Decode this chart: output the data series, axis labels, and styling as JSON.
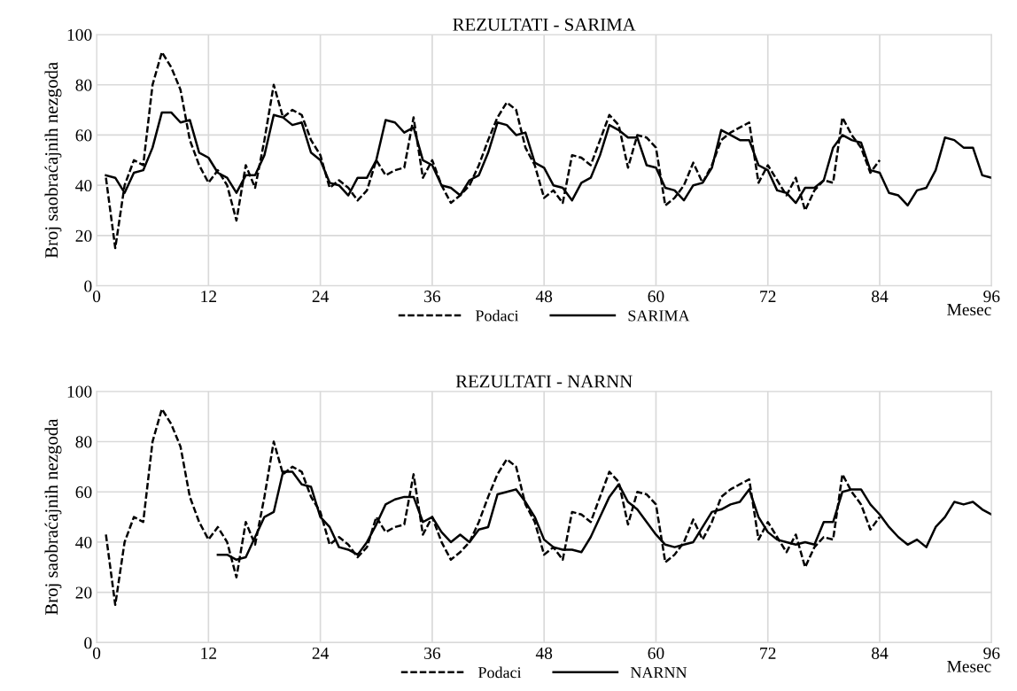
{
  "chart_data": [
    {
      "type": "line",
      "title": "REZULTATI - SARIMA",
      "xlabel": "Mesec",
      "ylabel": "Broj saobraćajnih nezgoda",
      "xlim": [
        0,
        96
      ],
      "xticks": [
        0,
        12,
        24,
        36,
        48,
        60,
        72,
        84,
        96
      ],
      "ylim": [
        0,
        100
      ],
      "yticks": [
        0,
        20,
        40,
        60,
        80,
        100
      ],
      "grid": true,
      "legend": "bottom",
      "series": [
        {
          "name": "Podaci",
          "color": "#000000",
          "line_style": "dashed",
          "x": [
            1,
            2,
            3,
            4,
            5,
            6,
            7,
            8,
            9,
            10,
            11,
            12,
            13,
            14,
            15,
            16,
            17,
            18,
            19,
            20,
            21,
            22,
            23,
            24,
            25,
            26,
            27,
            28,
            29,
            30,
            31,
            32,
            33,
            34,
            35,
            36,
            37,
            38,
            39,
            40,
            41,
            42,
            43,
            44,
            45,
            46,
            47,
            48,
            49,
            50,
            51,
            52,
            53,
            54,
            55,
            56,
            57,
            58,
            59,
            60,
            61,
            62,
            63,
            64,
            65,
            66,
            67,
            68,
            69,
            70,
            71,
            72,
            73,
            74,
            75,
            76,
            77,
            78,
            79,
            80,
            81,
            82,
            83,
            84
          ],
          "values": [
            43,
            15,
            40,
            50,
            48,
            80,
            93,
            87,
            78,
            58,
            48,
            41,
            46,
            40,
            26,
            48,
            39,
            58,
            80,
            67,
            70,
            68,
            58,
            52,
            39,
            42,
            39,
            34,
            38,
            50,
            44,
            46,
            47,
            67,
            43,
            50,
            40,
            33,
            36,
            40,
            48,
            58,
            67,
            73,
            70,
            55,
            48,
            35,
            38,
            33,
            52,
            51,
            48,
            58,
            68,
            64,
            47,
            60,
            59,
            55,
            32,
            35,
            40,
            49,
            41,
            48,
            58,
            61,
            63,
            65,
            41,
            48,
            42,
            36,
            43,
            30,
            38,
            42,
            41,
            67,
            60,
            55,
            45,
            50
          ]
        },
        {
          "name": "SARIMA",
          "color": "#000000",
          "line_style": "solid",
          "x": [
            1,
            2,
            3,
            4,
            5,
            6,
            7,
            8,
            9,
            10,
            11,
            12,
            13,
            14,
            15,
            16,
            17,
            18,
            19,
            20,
            21,
            22,
            23,
            24,
            25,
            26,
            27,
            28,
            29,
            30,
            31,
            32,
            33,
            34,
            35,
            36,
            37,
            38,
            39,
            40,
            41,
            42,
            43,
            44,
            45,
            46,
            47,
            48,
            49,
            50,
            51,
            52,
            53,
            54,
            55,
            56,
            57,
            58,
            59,
            60,
            61,
            62,
            63,
            64,
            65,
            66,
            67,
            68,
            69,
            70,
            71,
            72,
            73,
            74,
            75,
            76,
            77,
            78,
            79,
            80,
            81,
            82,
            83,
            84,
            85,
            86,
            87,
            88,
            89,
            90,
            91,
            92,
            93,
            94,
            95,
            96
          ],
          "values": [
            44,
            43,
            37,
            45,
            46,
            55,
            69,
            69,
            65,
            66,
            53,
            51,
            45,
            43,
            37,
            44,
            44,
            52,
            68,
            67,
            64,
            65,
            53,
            50,
            41,
            40,
            36,
            43,
            43,
            50,
            66,
            65,
            61,
            63,
            50,
            48,
            40,
            39,
            36,
            42,
            44,
            53,
            65,
            64,
            60,
            61,
            49,
            47,
            40,
            39,
            34,
            41,
            43,
            52,
            64,
            62,
            59,
            59,
            48,
            47,
            39,
            38,
            34,
            40,
            41,
            47,
            62,
            60,
            58,
            58,
            48,
            46,
            38,
            37,
            33,
            39,
            39,
            42,
            55,
            60,
            58,
            57,
            46,
            45,
            37,
            36,
            32,
            38,
            39,
            46,
            59,
            58,
            55,
            55,
            44,
            43
          ]
        }
      ]
    },
    {
      "type": "line",
      "title": "REZULTATI - NARNN",
      "xlabel": "Mesec",
      "ylabel": "Broj saobraćajnih nezgoda",
      "xlim": [
        0,
        96
      ],
      "xticks": [
        0,
        12,
        24,
        36,
        48,
        60,
        72,
        84,
        96
      ],
      "ylim": [
        0,
        100
      ],
      "yticks": [
        0,
        20,
        40,
        60,
        80,
        100
      ],
      "grid": true,
      "legend": "bottom",
      "series": [
        {
          "name": "Podaci",
          "color": "#000000",
          "line_style": "dashed",
          "x": [
            1,
            2,
            3,
            4,
            5,
            6,
            7,
            8,
            9,
            10,
            11,
            12,
            13,
            14,
            15,
            16,
            17,
            18,
            19,
            20,
            21,
            22,
            23,
            24,
            25,
            26,
            27,
            28,
            29,
            30,
            31,
            32,
            33,
            34,
            35,
            36,
            37,
            38,
            39,
            40,
            41,
            42,
            43,
            44,
            45,
            46,
            47,
            48,
            49,
            50,
            51,
            52,
            53,
            54,
            55,
            56,
            57,
            58,
            59,
            60,
            61,
            62,
            63,
            64,
            65,
            66,
            67,
            68,
            69,
            70,
            71,
            72,
            73,
            74,
            75,
            76,
            77,
            78,
            79,
            80,
            81,
            82,
            83,
            84
          ],
          "values": [
            43,
            15,
            40,
            50,
            48,
            80,
            93,
            87,
            78,
            58,
            48,
            41,
            46,
            40,
            26,
            48,
            39,
            58,
            80,
            67,
            70,
            68,
            58,
            52,
            39,
            42,
            39,
            34,
            38,
            50,
            44,
            46,
            47,
            67,
            43,
            50,
            40,
            33,
            36,
            40,
            48,
            58,
            67,
            73,
            70,
            55,
            48,
            35,
            38,
            33,
            52,
            51,
            48,
            58,
            68,
            64,
            47,
            60,
            59,
            55,
            32,
            35,
            40,
            49,
            41,
            48,
            58,
            61,
            63,
            65,
            41,
            48,
            42,
            36,
            43,
            30,
            38,
            42,
            41,
            67,
            60,
            55,
            45,
            50
          ]
        },
        {
          "name": "NARNN",
          "color": "#000000",
          "line_style": "solid",
          "x": [
            13,
            14,
            15,
            16,
            17,
            18,
            19,
            20,
            21,
            22,
            23,
            24,
            25,
            26,
            27,
            28,
            29,
            30,
            31,
            32,
            33,
            34,
            35,
            36,
            37,
            38,
            39,
            40,
            41,
            42,
            43,
            44,
            45,
            46,
            47,
            48,
            49,
            50,
            51,
            52,
            53,
            54,
            55,
            56,
            57,
            58,
            59,
            60,
            61,
            62,
            63,
            64,
            65,
            66,
            67,
            68,
            69,
            70,
            71,
            72,
            73,
            74,
            75,
            76,
            77,
            78,
            79,
            80,
            81,
            82,
            83,
            84,
            85,
            86,
            87,
            88,
            89,
            90,
            91,
            92,
            93,
            94,
            95,
            96
          ],
          "values": [
            35,
            35,
            33,
            34,
            42,
            50,
            52,
            68,
            68,
            63,
            62,
            50,
            46,
            38,
            37,
            35,
            40,
            47,
            55,
            57,
            58,
            58,
            48,
            50,
            44,
            40,
            43,
            40,
            45,
            46,
            59,
            60,
            61,
            56,
            50,
            41,
            38,
            37,
            37,
            36,
            42,
            50,
            58,
            63,
            56,
            53,
            48,
            43,
            39,
            38,
            39,
            40,
            46,
            52,
            53,
            55,
            56,
            61,
            50,
            44,
            41,
            40,
            39,
            40,
            39,
            48,
            48,
            60,
            61,
            61,
            55,
            51,
            46,
            42,
            39,
            41,
            38,
            46,
            50,
            56,
            55,
            56,
            53,
            51
          ]
        }
      ]
    }
  ]
}
